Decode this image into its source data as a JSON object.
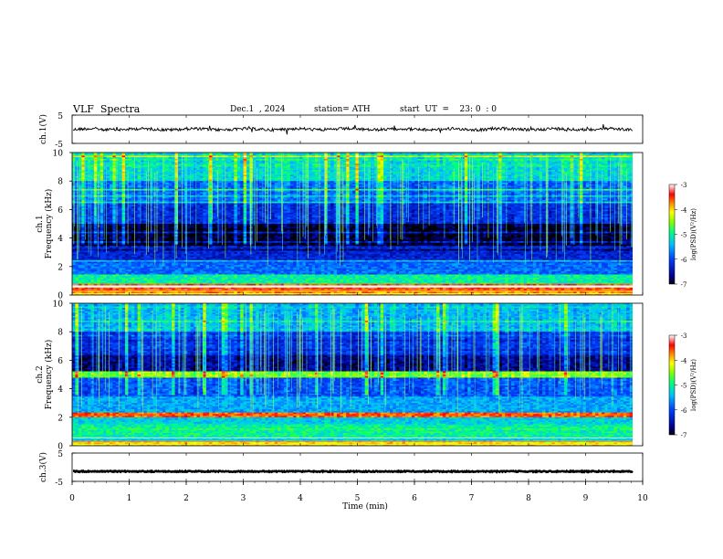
{
  "header": {
    "title": "VLF  Spectra",
    "date": "Dec.1  , 2024",
    "station": "station= ATH",
    "start": "start  UT  =    23: 0  : 0"
  },
  "chart_data": [
    {
      "type": "line",
      "panel": "ch1-waveform",
      "ylabel": "ch.1(V)",
      "ylim": [
        -5,
        5
      ],
      "yticklabels": [
        "5",
        "-5"
      ],
      "xlim": [
        0,
        10
      ],
      "baseline_value": 0,
      "color": "#000000"
    },
    {
      "type": "heatmap",
      "panel": "ch1-spectrogram",
      "ylabel": "ch.1\nFrequency  (kHz)",
      "ylim": [
        0,
        10
      ],
      "yticks": [
        0,
        2,
        4,
        6,
        8,
        10
      ],
      "xlim": [
        0,
        9.8
      ],
      "colorbar": {
        "label": "log(PSD)(V²/Hz)",
        "range": [
          -7,
          -3
        ],
        "ticks": [
          "-3",
          "-4",
          "-5",
          "-6",
          "-7"
        ]
      },
      "bands": [
        {
          "kHz": [
            0,
            0.3
          ],
          "level": -4.0
        },
        {
          "kHz": [
            0.3,
            0.8
          ],
          "level": -3.5
        },
        {
          "kHz": [
            0.8,
            1.5
          ],
          "level": -5.0
        },
        {
          "kHz": [
            1.5,
            2.5
          ],
          "level": -5.8
        },
        {
          "kHz": [
            2.5,
            3.5
          ],
          "level": -6.3
        },
        {
          "kHz": [
            3.5,
            5.0
          ],
          "level": -6.9
        },
        {
          "kHz": [
            5.0,
            6.5
          ],
          "level": -6.2
        },
        {
          "kHz": [
            6.5,
            8.0
          ],
          "level": -5.8
        },
        {
          "kHz": [
            8.0,
            10.0
          ],
          "level": -5.2
        }
      ]
    },
    {
      "type": "heatmap",
      "panel": "ch2-spectrogram",
      "ylabel": "ch.2\nFrequency  (kHz)",
      "ylim": [
        0,
        10
      ],
      "yticks": [
        0,
        2,
        4,
        6,
        8,
        10
      ],
      "xlim": [
        0,
        9.8
      ],
      "colorbar": {
        "label": "log(PSD)(V²/Hz)",
        "range": [
          -7,
          -3
        ],
        "ticks": [
          "-3",
          "-4",
          "-5",
          "-6",
          "-7"
        ]
      },
      "bands": [
        {
          "kHz": [
            0,
            0.3
          ],
          "level": -4.0
        },
        {
          "kHz": [
            0.3,
            1.5
          ],
          "level": -5.0
        },
        {
          "kHz": [
            1.5,
            2.0
          ],
          "level": -5.3
        },
        {
          "kHz": [
            2.0,
            2.3
          ],
          "level": -3.6
        },
        {
          "kHz": [
            2.3,
            3.5
          ],
          "level": -5.5
        },
        {
          "kHz": [
            3.5,
            4.8
          ],
          "level": -5.9
        },
        {
          "kHz": [
            4.8,
            5.2
          ],
          "level": -4.5
        },
        {
          "kHz": [
            5.2,
            6.5
          ],
          "level": -6.6
        },
        {
          "kHz": [
            6.5,
            8.0
          ],
          "level": -6.1
        },
        {
          "kHz": [
            8.0,
            10.0
          ],
          "level": -5.4
        }
      ]
    },
    {
      "type": "line",
      "panel": "ch3-waveform",
      "ylabel": "ch.3(V)",
      "ylim": [
        -5,
        5
      ],
      "yticklabels": [
        "5",
        "-5"
      ],
      "xlim": [
        0,
        10
      ],
      "baseline_value": -1.5,
      "color": "#000000"
    }
  ],
  "xaxis": {
    "label": "Time  (min)",
    "ticks": [
      "0",
      "1",
      "2",
      "3",
      "4",
      "5",
      "6",
      "7",
      "8",
      "9",
      "10"
    ]
  }
}
